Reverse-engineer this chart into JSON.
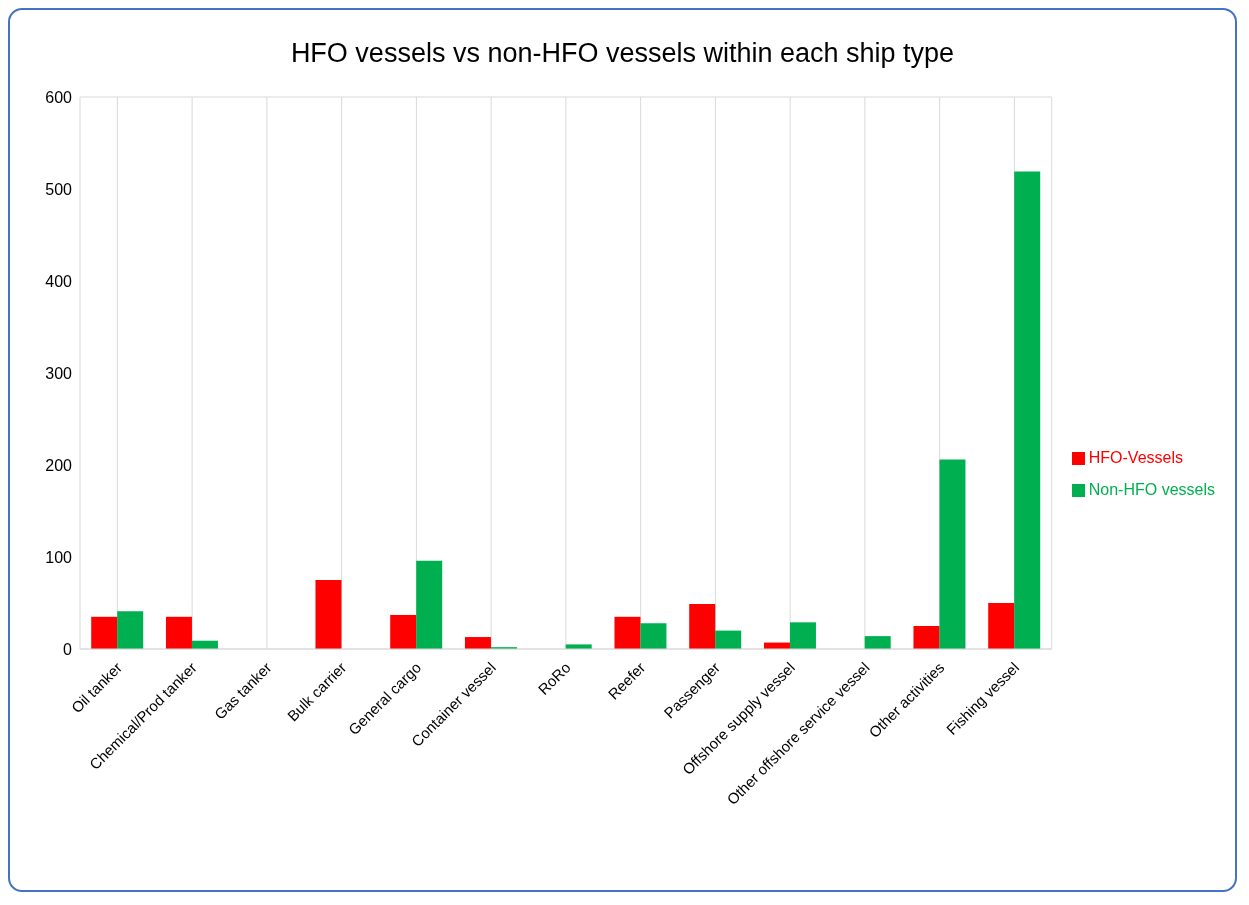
{
  "chart_data": {
    "type": "bar",
    "title": "HFO vessels vs non-HFO vessels within each ship type",
    "categories": [
      "Oil tanker",
      "Chemical/Prod tanker",
      "Gas tanker",
      "Bulk carrier",
      "General cargo",
      "Container vessel",
      "RoRo",
      "Reefer",
      "Passenger",
      "Offshore supply vessel",
      "Other offshore service vessel",
      "Other activities",
      "Fishing vessel"
    ],
    "series": [
      {
        "name": "HFO-Vessels",
        "color": "#ff0000",
        "values": [
          35,
          35,
          0,
          75,
          37,
          13,
          0,
          35,
          49,
          7,
          0,
          25,
          50
        ]
      },
      {
        "name": "Non-HFO vessels",
        "color": "#00b050",
        "values": [
          41,
          9,
          0,
          0,
          96,
          2,
          5,
          28,
          20,
          29,
          14,
          206,
          519
        ]
      }
    ],
    "ylim": [
      0,
      600
    ],
    "yticks": [
      0,
      100,
      200,
      300,
      400,
      500,
      600
    ],
    "grid": true,
    "legend": "right"
  }
}
